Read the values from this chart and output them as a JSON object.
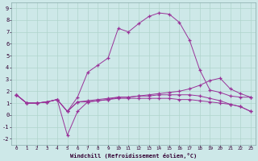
{
  "xlabel": "Windchill (Refroidissement éolien,°C)",
  "background_color": "#cde8e8",
  "grid_color": "#b0d4cc",
  "line_color": "#993399",
  "xlim": [
    -0.5,
    23.5
  ],
  "ylim": [
    -2.5,
    9.5
  ],
  "xticks": [
    0,
    1,
    2,
    3,
    4,
    5,
    6,
    7,
    8,
    9,
    10,
    11,
    12,
    13,
    14,
    15,
    16,
    17,
    18,
    19,
    20,
    21,
    22,
    23
  ],
  "yticks": [
    -2,
    -1,
    0,
    1,
    2,
    3,
    4,
    5,
    6,
    7,
    8,
    9
  ],
  "series1_x": [
    0,
    1,
    2,
    3,
    4,
    5,
    6,
    7,
    8,
    9,
    10,
    11,
    12,
    13,
    14,
    15,
    16,
    17,
    18,
    19,
    20,
    21,
    22,
    23
  ],
  "series1_y": [
    1.7,
    1.0,
    1.0,
    1.1,
    1.3,
    0.3,
    1.5,
    3.6,
    4.2,
    4.8,
    7.3,
    7.0,
    7.7,
    8.3,
    8.6,
    8.5,
    7.8,
    6.3,
    3.8,
    2.1,
    1.9,
    1.6,
    1.5,
    1.5
  ],
  "series2_x": [
    0,
    1,
    2,
    3,
    4,
    5,
    6,
    7,
    8,
    9,
    10,
    11,
    12,
    13,
    14,
    15,
    16,
    17,
    18,
    19,
    20,
    21,
    22,
    23
  ],
  "series2_y": [
    1.7,
    1.0,
    1.0,
    1.1,
    1.3,
    -1.7,
    0.3,
    1.1,
    1.2,
    1.3,
    1.5,
    1.5,
    1.6,
    1.7,
    1.8,
    1.9,
    2.0,
    2.2,
    2.5,
    2.9,
    3.1,
    2.2,
    1.8,
    1.5
  ],
  "series3_x": [
    0,
    1,
    2,
    3,
    4,
    5,
    6,
    7,
    8,
    9,
    10,
    11,
    12,
    13,
    14,
    15,
    16,
    17,
    18,
    19,
    20,
    21,
    22,
    23
  ],
  "series3_y": [
    1.7,
    1.0,
    1.0,
    1.1,
    1.3,
    0.3,
    1.1,
    1.2,
    1.3,
    1.4,
    1.5,
    1.5,
    1.6,
    1.6,
    1.7,
    1.7,
    1.7,
    1.7,
    1.6,
    1.4,
    1.2,
    0.9,
    0.7,
    0.3
  ],
  "series4_x": [
    0,
    1,
    2,
    3,
    4,
    5,
    6,
    7,
    8,
    9,
    10,
    11,
    12,
    13,
    14,
    15,
    16,
    17,
    18,
    19,
    20,
    21,
    22,
    23
  ],
  "series4_y": [
    1.7,
    1.0,
    1.0,
    1.1,
    1.3,
    0.3,
    1.1,
    1.1,
    1.2,
    1.3,
    1.4,
    1.4,
    1.4,
    1.4,
    1.4,
    1.4,
    1.3,
    1.3,
    1.2,
    1.1,
    1.0,
    0.9,
    0.7,
    0.3
  ]
}
